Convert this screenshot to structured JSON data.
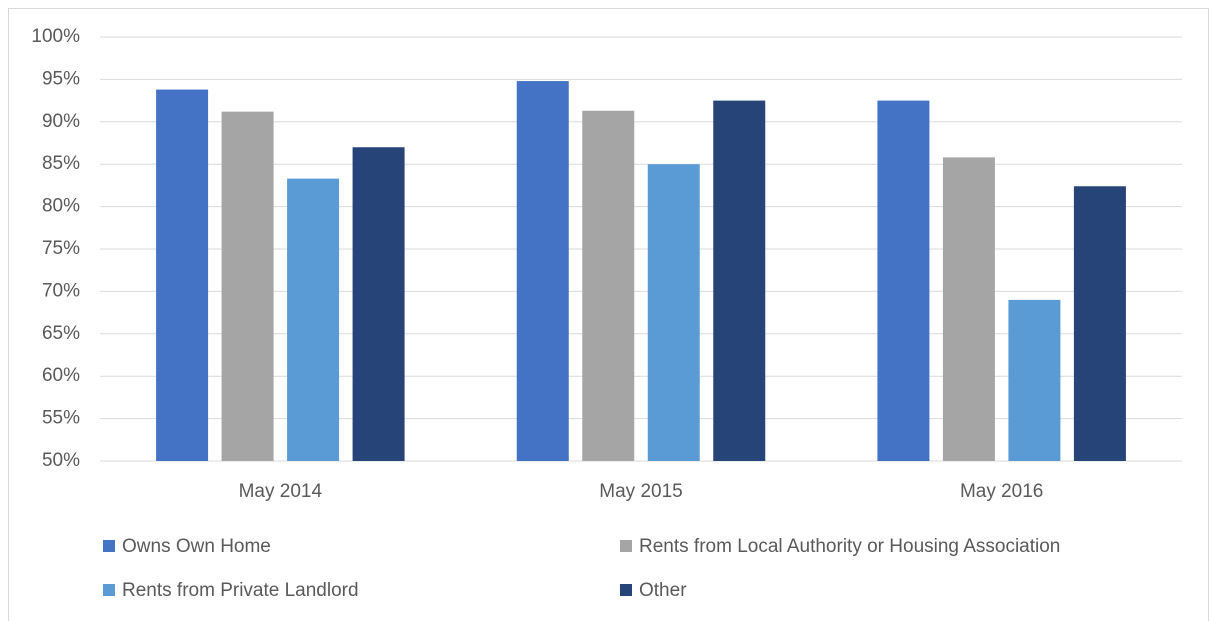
{
  "chart_data": {
    "type": "bar",
    "categories": [
      "May 2014",
      "May 2015",
      "May 2016"
    ],
    "series": [
      {
        "name": "Owns Own Home",
        "color": "#4472c4",
        "values": [
          93.8,
          94.8,
          92.5
        ]
      },
      {
        "name": "Rents from Local Authority or Housing Association",
        "color": "#a5a5a5",
        "values": [
          91.2,
          91.3,
          85.8
        ]
      },
      {
        "name": "Rents from Private Landlord",
        "color": "#5b9bd5",
        "values": [
          83.3,
          85.0,
          69.0
        ]
      },
      {
        "name": "Other",
        "color": "#264478",
        "values": [
          87.0,
          92.5,
          82.4
        ]
      }
    ],
    "ylim": [
      50,
      100
    ],
    "yticks": [
      {
        "value": 50,
        "label": "50%"
      },
      {
        "value": 55,
        "label": "55%"
      },
      {
        "value": 60,
        "label": "60%"
      },
      {
        "value": 65,
        "label": "65%"
      },
      {
        "value": 70,
        "label": "70%"
      },
      {
        "value": 75,
        "label": "75%"
      },
      {
        "value": 80,
        "label": "80%"
      },
      {
        "value": 85,
        "label": "85%"
      },
      {
        "value": 90,
        "label": "90%"
      },
      {
        "value": 95,
        "label": "95%"
      },
      {
        "value": 100,
        "label": "100%"
      }
    ],
    "grid": true,
    "legend": "bottom"
  }
}
